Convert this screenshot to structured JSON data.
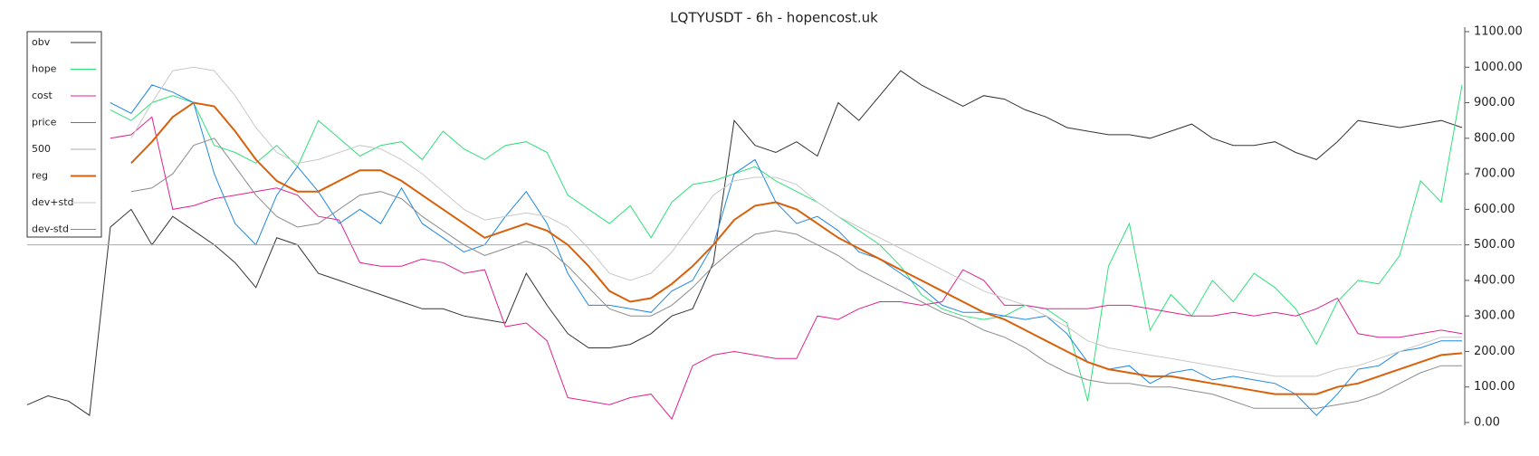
{
  "chart_data": {
    "type": "line",
    "title": "LQTYUSDT - 6h - hopencost.uk",
    "ylim": [
      0,
      1100
    ],
    "yticks": [
      {
        "value": 0,
        "label": "0.00"
      },
      {
        "value": 100,
        "label": "100.00"
      },
      {
        "value": 200,
        "label": "200.00"
      },
      {
        "value": 300,
        "label": "300.00"
      },
      {
        "value": 400,
        "label": "400.00"
      },
      {
        "value": 500,
        "label": "500.00"
      },
      {
        "value": 600,
        "label": "600.00"
      },
      {
        "value": 700,
        "label": "700.00"
      },
      {
        "value": 800,
        "label": "800.00"
      },
      {
        "value": 900,
        "label": "900.00"
      },
      {
        "value": 1000,
        "label": "1000.00"
      },
      {
        "value": 1100,
        "label": "1100.00"
      }
    ],
    "legend": "upper left",
    "series": [
      {
        "name": "obv",
        "color": "#333333",
        "width": 1,
        "values": [
          50,
          75,
          60,
          20,
          550,
          600,
          500,
          580,
          540,
          500,
          450,
          380,
          520,
          500,
          420,
          400,
          380,
          360,
          340,
          320,
          320,
          300,
          290,
          280,
          420,
          330,
          250,
          210,
          210,
          220,
          250,
          300,
          320,
          450,
          850,
          780,
          760,
          790,
          750,
          900,
          850,
          920,
          990,
          950,
          920,
          890,
          920,
          910,
          880,
          860,
          830,
          820,
          810,
          810,
          800,
          820,
          840,
          800,
          780,
          780,
          790,
          760,
          740,
          790,
          850,
          840,
          830,
          840,
          850,
          830
        ]
      },
      {
        "name": "hope",
        "color": "#2ee07a",
        "width": 1,
        "values": [
          null,
          null,
          null,
          null,
          880,
          850,
          900,
          920,
          900,
          780,
          760,
          730,
          780,
          720,
          850,
          800,
          750,
          780,
          790,
          740,
          820,
          770,
          740,
          780,
          790,
          760,
          640,
          600,
          560,
          610,
          520,
          620,
          670,
          680,
          700,
          720,
          680,
          650,
          620,
          580,
          540,
          500,
          440,
          360,
          320,
          300,
          290,
          300,
          330,
          320,
          280,
          60,
          440,
          560,
          260,
          360,
          300,
          400,
          340,
          420,
          380,
          320,
          220,
          340,
          400,
          390,
          470,
          680,
          620,
          950
        ]
      },
      {
        "name": "cost",
        "color": "#e0228c",
        "width": 1,
        "values": [
          null,
          null,
          null,
          null,
          800,
          810,
          860,
          600,
          610,
          630,
          640,
          650,
          660,
          640,
          580,
          570,
          450,
          440,
          440,
          460,
          450,
          420,
          430,
          270,
          280,
          230,
          70,
          60,
          50,
          70,
          80,
          10,
          160,
          190,
          200,
          190,
          180,
          180,
          300,
          290,
          320,
          340,
          340,
          330,
          340,
          430,
          400,
          330,
          330,
          320,
          320,
          320,
          330,
          330,
          320,
          310,
          300,
          300,
          310,
          300,
          310,
          300,
          320,
          350,
          250,
          240,
          240,
          250,
          260,
          250
        ]
      },
      {
        "name": "price",
        "color": "#1e88e5",
        "width": 1,
        "values": [
          null,
          null,
          null,
          null,
          900,
          870,
          950,
          930,
          900,
          700,
          560,
          500,
          640,
          720,
          650,
          560,
          600,
          560,
          660,
          560,
          520,
          480,
          500,
          580,
          650,
          560,
          420,
          330,
          330,
          320,
          310,
          370,
          400,
          500,
          700,
          740,
          620,
          560,
          580,
          540,
          480,
          460,
          420,
          380,
          330,
          310,
          310,
          300,
          290,
          300,
          250,
          170,
          150,
          160,
          110,
          140,
          150,
          120,
          130,
          120,
          110,
          80,
          20,
          80,
          150,
          160,
          200,
          210,
          230,
          230
        ]
      },
      {
        "name": "500",
        "color": "#aaaaaa",
        "width": 1,
        "value": 500
      },
      {
        "name": "reg",
        "color": "#d9600a",
        "width": 2,
        "values": [
          null,
          null,
          null,
          null,
          null,
          730,
          790,
          860,
          900,
          890,
          820,
          740,
          680,
          650,
          650,
          680,
          710,
          710,
          680,
          640,
          600,
          560,
          520,
          540,
          560,
          540,
          500,
          440,
          370,
          340,
          350,
          390,
          440,
          500,
          570,
          610,
          620,
          600,
          560,
          520,
          490,
          460,
          430,
          400,
          370,
          340,
          310,
          290,
          260,
          230,
          200,
          170,
          150,
          140,
          130,
          130,
          120,
          110,
          100,
          90,
          80,
          80,
          80,
          100,
          110,
          130,
          150,
          170,
          190,
          195
        ]
      },
      {
        "name": "dev+std",
        "color": "#c8c8c8",
        "width": 1,
        "values": [
          null,
          null,
          null,
          null,
          null,
          800,
          900,
          990,
          1000,
          990,
          920,
          830,
          760,
          730,
          740,
          760,
          780,
          770,
          740,
          700,
          650,
          600,
          570,
          580,
          590,
          580,
          550,
          490,
          420,
          400,
          420,
          480,
          560,
          640,
          680,
          690,
          690,
          670,
          620,
          580,
          550,
          520,
          490,
          460,
          430,
          400,
          370,
          350,
          330,
          300,
          270,
          230,
          210,
          200,
          190,
          180,
          170,
          160,
          150,
          140,
          130,
          130,
          130,
          150,
          160,
          180,
          200,
          220,
          240,
          240
        ]
      },
      {
        "name": "dev-std",
        "color": "#8c8c8c",
        "width": 1,
        "values": [
          null,
          null,
          null,
          null,
          null,
          650,
          660,
          700,
          780,
          800,
          720,
          640,
          580,
          550,
          560,
          600,
          640,
          650,
          630,
          580,
          540,
          500,
          470,
          490,
          510,
          490,
          440,
          380,
          320,
          300,
          300,
          330,
          380,
          440,
          490,
          530,
          540,
          530,
          500,
          470,
          430,
          400,
          370,
          340,
          310,
          290,
          260,
          240,
          210,
          170,
          140,
          120,
          110,
          110,
          100,
          100,
          90,
          80,
          60,
          40,
          40,
          40,
          40,
          50,
          60,
          80,
          110,
          140,
          160,
          160
        ]
      }
    ]
  }
}
